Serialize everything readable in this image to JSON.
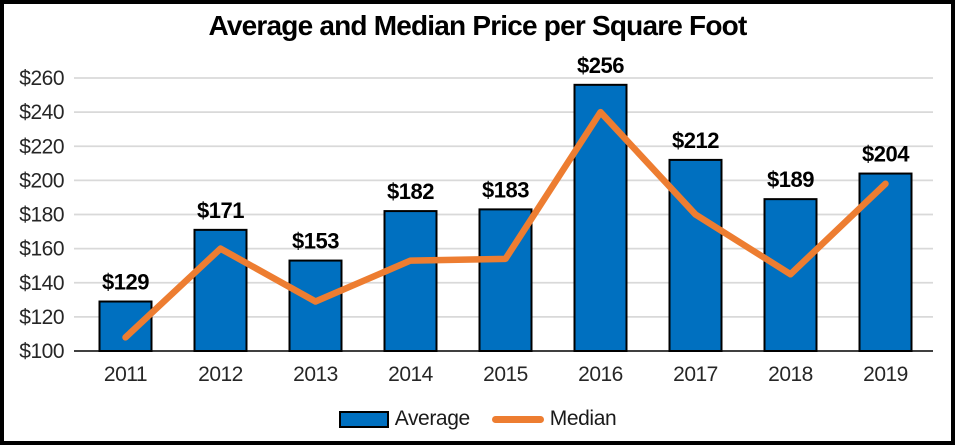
{
  "chart_data": {
    "type": "bar",
    "title": "Average and Median Price per Square Foot",
    "categories": [
      "2011",
      "2012",
      "2013",
      "2014",
      "2015",
      "2016",
      "2017",
      "2018",
      "2019"
    ],
    "series": [
      {
        "name": "Average",
        "type": "bar",
        "color": "#0070C0",
        "values": [
          129,
          171,
          153,
          182,
          183,
          256,
          212,
          189,
          204
        ],
        "data_labels": [
          "$129",
          "$171",
          "$153",
          "$182",
          "$183",
          "$256",
          "$212",
          "$189",
          "$204"
        ]
      },
      {
        "name": "Median",
        "type": "line",
        "color": "#ED7D31",
        "values": [
          108,
          160,
          129,
          153,
          154,
          240,
          180,
          145,
          198
        ]
      }
    ],
    "y_axis": {
      "min": 100,
      "max": 260,
      "step": 20,
      "tick_labels": [
        "$100",
        "$120",
        "$140",
        "$160",
        "$180",
        "$200",
        "$220",
        "$240",
        "$260"
      ]
    },
    "xlabel": "",
    "ylabel": "",
    "grid": true,
    "legend_position": "bottom",
    "gridline_color": "#D9D9D9",
    "axis_line_color": "#404040",
    "label_color": "#262626",
    "data_label_color": "#000000"
  }
}
